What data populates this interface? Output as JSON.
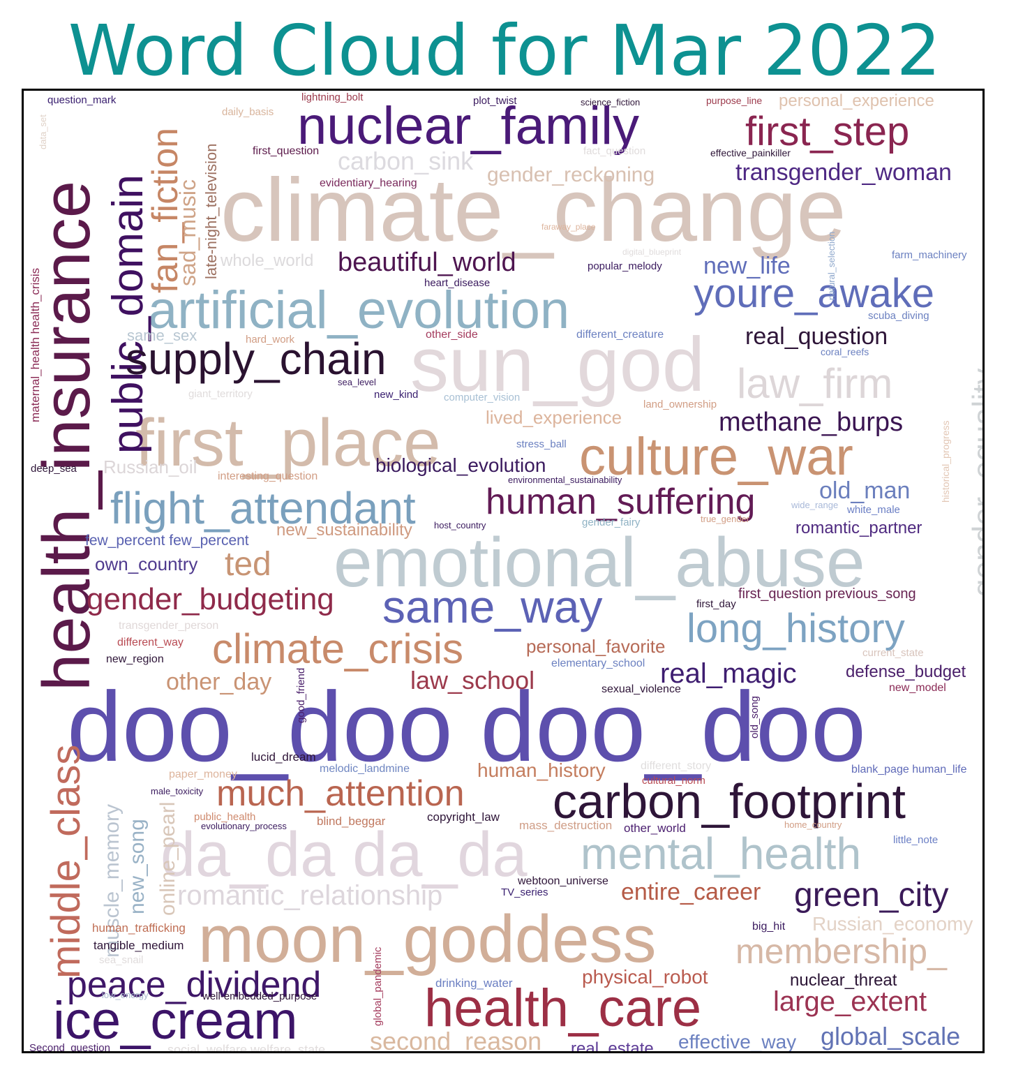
{
  "title": "Word Cloud for Mar 2022",
  "chart_data": {
    "type": "wordcloud",
    "title": "Word Cloud for Mar 2022",
    "colormap": "twilight",
    "words": [
      {
        "text": "doo_doo doo_doo",
        "weight": 100,
        "color": "#5d4fad",
        "rotated": false
      },
      {
        "text": "climate_change",
        "weight": 95,
        "color": "#d7c5bc",
        "rotated": false
      },
      {
        "text": "emotional_abuse",
        "weight": 82,
        "color": "#bfcbd1",
        "rotated": false
      },
      {
        "text": "health_insurance",
        "weight": 80,
        "color": "#5b1a4a",
        "rotated": true
      },
      {
        "text": "sun_god",
        "weight": 78,
        "color": "#e2d8db",
        "rotated": false
      },
      {
        "text": "moon_goddess",
        "weight": 76,
        "color": "#d1ae98",
        "rotated": false
      },
      {
        "text": "first_place",
        "weight": 75,
        "color": "#d3bbab",
        "rotated": false
      },
      {
        "text": "da_da da_da",
        "weight": 73,
        "color": "#e1d6de",
        "rotated": false
      },
      {
        "text": "artificial_evolution",
        "weight": 62,
        "color": "#8fb2c4",
        "rotated": false
      },
      {
        "text": "nuclear_family",
        "weight": 62,
        "color": "#4a1a78",
        "rotated": false
      },
      {
        "text": "culture_war",
        "weight": 62,
        "color": "#c99372",
        "rotated": false
      },
      {
        "text": "health_care",
        "weight": 62,
        "color": "#9c2f45",
        "rotated": false
      },
      {
        "text": "public_domain",
        "weight": 60,
        "color": "#3f1060",
        "rotated": true
      },
      {
        "text": "carbon_footprint",
        "weight": 58,
        "color": "#2e1538",
        "rotated": false
      },
      {
        "text": "ice_cream",
        "weight": 58,
        "color": "#3c1468",
        "rotated": false
      },
      {
        "text": "same_way",
        "weight": 56,
        "color": "#5c62b5",
        "rotated": false
      },
      {
        "text": "flight_attendant",
        "weight": 54,
        "color": "#7aa0bd",
        "rotated": false
      },
      {
        "text": "middle_class",
        "weight": 54,
        "color": "#c06a5c",
        "rotated": true
      },
      {
        "text": "mental_health",
        "weight": 54,
        "color": "#afc3cb",
        "rotated": false
      },
      {
        "text": "supply_chain",
        "weight": 52,
        "color": "#2a1230",
        "rotated": false
      },
      {
        "text": "youre_awake",
        "weight": 50,
        "color": "#5f6db9",
        "rotated": false
      },
      {
        "text": "law_firm",
        "weight": 50,
        "color": "#ddd6d8",
        "rotated": false
      },
      {
        "text": "first_step",
        "weight": 50,
        "color": "#8a2550",
        "rotated": false
      },
      {
        "text": "fan_fiction",
        "weight": 48,
        "color": "#c68665",
        "rotated": true
      },
      {
        "text": "climate_crisis",
        "weight": 48,
        "color": "#c88a6a",
        "rotated": false
      },
      {
        "text": "human_suffering",
        "weight": 48,
        "color": "#621b55",
        "rotated": false
      },
      {
        "text": "long_history",
        "weight": 48,
        "color": "#7da3c2",
        "rotated": false
      },
      {
        "text": "gender_equality",
        "weight": 46,
        "color": "#cfd3d5",
        "rotated": true
      },
      {
        "text": "peace_dividend",
        "weight": 46,
        "color": "#3f1768",
        "rotated": false
      },
      {
        "text": "much_attention",
        "weight": 46,
        "color": "#b96550",
        "rotated": false
      },
      {
        "text": "membership_",
        "weight": 44,
        "color": "#d6b8a6",
        "rotated": false
      },
      {
        "text": "green_city",
        "weight": 42,
        "color": "#3a1a58",
        "rotated": false
      },
      {
        "text": "ted",
        "weight": 42,
        "color": "#c79474",
        "rotated": false
      },
      {
        "text": "gender_budgeting",
        "weight": 40,
        "color": "#8f2a4a",
        "rotated": false
      },
      {
        "text": "romantic_relationship",
        "weight": 36,
        "color": "#ddd6dc",
        "rotated": false
      },
      {
        "text": "methane_burps",
        "weight": 36,
        "color": "#3b1552",
        "rotated": false
      },
      {
        "text": "large_extent",
        "weight": 36,
        "color": "#9b3352",
        "rotated": false
      },
      {
        "text": "beautiful_world",
        "weight": 36,
        "color": "#4e1550",
        "rotated": false
      },
      {
        "text": "real_magic",
        "weight": 36,
        "color": "#3e1d70",
        "rotated": false
      },
      {
        "text": "law_school",
        "weight": 34,
        "color": "#9c3a4c",
        "rotated": false
      },
      {
        "text": "second_reason",
        "weight": 34,
        "color": "#d9b89f",
        "rotated": false
      },
      {
        "text": "entire_career",
        "weight": 34,
        "color": "#b55a46",
        "rotated": false
      },
      {
        "text": "global_scale",
        "weight": 34,
        "color": "#6172b4",
        "rotated": false
      },
      {
        "text": "carbon_sink",
        "weight": 34,
        "color": "#dcdadf",
        "rotated": false
      },
      {
        "text": "transgender_woman",
        "weight": 32,
        "color": "#4e2883",
        "rotated": false
      },
      {
        "text": "real_question",
        "weight": 32,
        "color": "#2e1538",
        "rotated": false
      },
      {
        "text": "old_man",
        "weight": 32,
        "color": "#6b7fbd",
        "rotated": false
      },
      {
        "text": "other_day",
        "weight": 32,
        "color": "#c99374",
        "rotated": false
      },
      {
        "text": "new_life",
        "weight": 32,
        "color": "#5f6db9",
        "rotated": false
      },
      {
        "text": "sad_music",
        "weight": 32,
        "color": "#cfa488",
        "rotated": true
      },
      {
        "text": "muscle_memory",
        "weight": 30,
        "color": "#bac4d0",
        "rotated": true
      },
      {
        "text": "new_song",
        "weight": 30,
        "color": "#99b2c6",
        "rotated": true
      },
      {
        "text": "online_pearl",
        "weight": 30,
        "color": "#d8c6b8",
        "rotated": true
      },
      {
        "text": "human_history",
        "weight": 28,
        "color": "#c47d5e",
        "rotated": false
      },
      {
        "text": "biological_evolution",
        "weight": 28,
        "color": "#3a1a5e",
        "rotated": false
      },
      {
        "text": "gender_reckoning",
        "weight": 28,
        "color": "#d8c0b1",
        "rotated": false
      },
      {
        "text": "Russian_economy",
        "weight": 28,
        "color": "#e3d2c6",
        "rotated": false
      },
      {
        "text": "physical_robot",
        "weight": 28,
        "color": "#b95a4e",
        "rotated": false
      },
      {
        "text": "effective_way",
        "weight": 28,
        "color": "#6b80c0",
        "rotated": false
      },
      {
        "text": "late-night_television",
        "weight": 26,
        "color": "#9c7060",
        "rotated": true
      },
      {
        "text": "Russian_oil",
        "weight": 26,
        "color": "#dcd6d8",
        "rotated": false
      },
      {
        "text": "lived_experience",
        "weight": 26,
        "color": "#dcb49c",
        "rotated": false
      },
      {
        "text": "personal_favorite",
        "weight": 26,
        "color": "#b66a56",
        "rotated": false
      },
      {
        "text": "new_sustainability",
        "weight": 26,
        "color": "#cf9a80",
        "rotated": false
      },
      {
        "text": "whole_world",
        "weight": 26,
        "color": "#dcdadc",
        "rotated": false
      },
      {
        "text": "own_country",
        "weight": 26,
        "color": "#4f3a8e",
        "rotated": false
      },
      {
        "text": "real_estate",
        "weight": 26,
        "color": "#5d3b96",
        "rotated": false
      },
      {
        "text": "nuclear_threat",
        "weight": 26,
        "color": "#2b1535",
        "rotated": false
      },
      {
        "text": "romantic_partner",
        "weight": 26,
        "color": "#4f2a80",
        "rotated": false
      },
      {
        "text": "personal_experience",
        "weight": 26,
        "color": "#dfc2ae",
        "rotated": false
      },
      {
        "text": "defense_budget",
        "weight": 24,
        "color": "#4a1f6a",
        "rotated": false
      },
      {
        "text": "few_percent few_percent",
        "weight": 22,
        "color": "#5860b0",
        "rotated": false
      },
      {
        "text": "first_question previous_song",
        "weight": 22,
        "color": "#682452",
        "rotated": false
      },
      {
        "text": "same_sex",
        "weight": 22,
        "color": "#b7c6d1",
        "rotated": false
      },
      {
        "text": "social_welfare welfare_state",
        "weight": 20,
        "color": "#e0dcdc",
        "rotated": false
      },
      {
        "text": "maternal_health health_crisis",
        "weight": 18,
        "color": "#8a2a55",
        "rotated": true
      },
      {
        "text": "historical_progress",
        "weight": 16,
        "color": "#e2c6b4",
        "rotated": true
      },
      {
        "text": "copyright_law",
        "weight": 17,
        "color": "#2e1538",
        "rotated": false
      },
      {
        "text": "mass_destruction",
        "weight": 18,
        "color": "#cf9d86",
        "rotated": false
      },
      {
        "text": "other_world",
        "weight": 18,
        "color": "#4c2070",
        "rotated": false
      },
      {
        "text": "blind_beggar",
        "weight": 18,
        "color": "#c0785f",
        "rotated": false
      },
      {
        "text": "lucid_dream",
        "weight": 17,
        "color": "#2e1538",
        "rotated": false
      },
      {
        "text": "melodic_landmine",
        "weight": 16,
        "color": "#6f86c1",
        "rotated": false
      },
      {
        "text": "paper_money",
        "weight": 16,
        "color": "#ddb49c",
        "rotated": false
      },
      {
        "text": "human_trafficking",
        "weight": 17,
        "color": "#bf6e54",
        "rotated": false
      },
      {
        "text": "tangible_medium",
        "weight": 17,
        "color": "#2e1538",
        "rotated": false
      },
      {
        "text": "drinking_water",
        "weight": 17,
        "color": "#6b7fc2",
        "rotated": false
      },
      {
        "text": "webtoon_universe",
        "weight": 16,
        "color": "#2e1538",
        "rotated": false
      },
      {
        "text": "TV_series",
        "weight": 15,
        "color": "#3a2070",
        "rotated": false
      },
      {
        "text": "big_hit",
        "weight": 16,
        "color": "#3a1a5e",
        "rotated": false
      },
      {
        "text": "blank_page human_life",
        "weight": 16,
        "color": "#5f6ab8",
        "rotated": false
      },
      {
        "text": "different_story",
        "weight": 16,
        "color": "#e0dede",
        "rotated": false
      },
      {
        "text": "cultural_norm",
        "weight": 15,
        "color": "#b84a52",
        "rotated": false
      },
      {
        "text": "little_note",
        "weight": 15,
        "color": "#6a7ec4",
        "rotated": false
      },
      {
        "text": "home_country",
        "weight": 13,
        "color": "#d19d84",
        "rotated": false
      },
      {
        "text": "public_health",
        "weight": 15,
        "color": "#cf8a6e",
        "rotated": false
      },
      {
        "text": "evolutionary_process",
        "weight": 13,
        "color": "#3a1a5e",
        "rotated": false
      },
      {
        "text": "male_toxicity",
        "weight": 13,
        "color": "#3a1a5e",
        "rotated": false
      },
      {
        "text": "sea_snail",
        "weight": 15,
        "color": "#e0dcdc",
        "rotated": false
      },
      {
        "text": "low_energy",
        "weight": 13,
        "color": "#a8b8cc",
        "rotated": false
      },
      {
        "text": "well-embedded_purpose",
        "weight": 15,
        "color": "#2e1538",
        "rotated": false
      },
      {
        "text": "Second_question",
        "weight": 15,
        "color": "#4a1f6a",
        "rotated": false
      },
      {
        "text": "global_pandemic",
        "weight": 15,
        "color": "#a33a5c",
        "rotated": true
      },
      {
        "text": "good_friend",
        "weight": 15,
        "color": "#4a1f6a",
        "rotated": true
      },
      {
        "text": "old_song",
        "weight": 15,
        "color": "#4a1f6a",
        "rotated": true
      },
      {
        "text": "sexual_violence",
        "weight": 16,
        "color": "#2e1538",
        "rotated": false
      },
      {
        "text": "new_model",
        "weight": 16,
        "color": "#8a2a55",
        "rotated": false
      },
      {
        "text": "elementary_school",
        "weight": 16,
        "color": "#6b80c0",
        "rotated": false
      },
      {
        "text": "current_state",
        "weight": 15,
        "color": "#d8c4bc",
        "rotated": false
      },
      {
        "text": "first_day",
        "weight": 15,
        "color": "#2e1538",
        "rotated": false
      },
      {
        "text": "transgender_person",
        "weight": 16,
        "color": "#e0d8d8",
        "rotated": false
      },
      {
        "text": "different_way",
        "weight": 16,
        "color": "#b84a52",
        "rotated": false
      },
      {
        "text": "new_region",
        "weight": 16,
        "color": "#2e1538",
        "rotated": false
      },
      {
        "text": "host_country",
        "weight": 13,
        "color": "#3a1a5e",
        "rotated": false
      },
      {
        "text": "gender_fairy",
        "weight": 15,
        "color": "#8fb2c4",
        "rotated": false
      },
      {
        "text": "true_gender",
        "weight": 13,
        "color": "#d19d84",
        "rotated": false
      },
      {
        "text": "wide_range",
        "weight": 13,
        "color": "#a8b8d8",
        "rotated": false
      },
      {
        "text": "white_male",
        "weight": 15,
        "color": "#6a7ec4",
        "rotated": false
      },
      {
        "text": "environmental_sustainability",
        "weight": 13,
        "color": "#3a1a5e",
        "rotated": false
      },
      {
        "text": "stress_ball",
        "weight": 15,
        "color": "#6b80c0",
        "rotated": false
      },
      {
        "text": "interesting_question",
        "weight": 16,
        "color": "#d19d84",
        "rotated": false
      },
      {
        "text": "deep_sea",
        "weight": 15,
        "color": "#2e1538",
        "rotated": false
      },
      {
        "text": "giant_territory",
        "weight": 15,
        "color": "#e0dcdc",
        "rotated": false
      },
      {
        "text": "sea_level",
        "weight": 13,
        "color": "#3a1a5e",
        "rotated": false
      },
      {
        "text": "new_kind",
        "weight": 15,
        "color": "#3a2070",
        "rotated": false
      },
      {
        "text": "computer_vision",
        "weight": 15,
        "color": "#a8c0d4",
        "rotated": false
      },
      {
        "text": "land_ownership",
        "weight": 15,
        "color": "#d19d84",
        "rotated": false
      },
      {
        "text": "coral_reefs",
        "weight": 14,
        "color": "#6b80c0",
        "rotated": false
      },
      {
        "text": "hard_work",
        "weight": 15,
        "color": "#d19d84",
        "rotated": false
      },
      {
        "text": "other_side",
        "weight": 16,
        "color": "#a33a5c",
        "rotated": false
      },
      {
        "text": "different_creature",
        "weight": 16,
        "color": "#6b80c0",
        "rotated": false
      },
      {
        "text": "scuba_diving",
        "weight": 15,
        "color": "#6b80c0",
        "rotated": false
      },
      {
        "text": "heart_disease",
        "weight": 15,
        "color": "#3a1a5e",
        "rotated": false
      },
      {
        "text": "popular_melody",
        "weight": 15,
        "color": "#3a1a5e",
        "rotated": false
      },
      {
        "text": "natural_selection",
        "weight": 13,
        "color": "#8fa8cc",
        "rotated": true
      },
      {
        "text": "farm_machinery",
        "weight": 15,
        "color": "#6b80c0",
        "rotated": false
      },
      {
        "text": "digital_blueprint",
        "weight": 12,
        "color": "#e0dcdc",
        "rotated": false
      },
      {
        "text": "faraway_place",
        "weight": 12,
        "color": "#ddb49c",
        "rotated": false
      },
      {
        "text": "evidentiary_hearing",
        "weight": 16,
        "color": "#7a2a5c",
        "rotated": false
      },
      {
        "text": "first_question",
        "weight": 16,
        "color": "#5b1a4a",
        "rotated": false
      },
      {
        "text": "fact_question",
        "weight": 15,
        "color": "#e0dcdc",
        "rotated": false
      },
      {
        "text": "effective_painkiller",
        "weight": 14,
        "color": "#2e1538",
        "rotated": false
      },
      {
        "text": "daily_basis",
        "weight": 15,
        "color": "#d8b49c",
        "rotated": false
      },
      {
        "text": "question_mark",
        "weight": 15,
        "color": "#3a2070",
        "rotated": false
      },
      {
        "text": "data_set",
        "weight": 13,
        "color": "#e0d2c8",
        "rotated": true
      },
      {
        "text": "lightning_bolt",
        "weight": 15,
        "color": "#9c3a4c",
        "rotated": false
      },
      {
        "text": "plot_twist",
        "weight": 15,
        "color": "#3a1a5e",
        "rotated": false
      },
      {
        "text": "science_fiction",
        "weight": 13,
        "color": "#2e1538",
        "rotated": false
      },
      {
        "text": "purpose_line",
        "weight": 14,
        "color": "#9c3a4c",
        "rotated": false
      }
    ]
  }
}
